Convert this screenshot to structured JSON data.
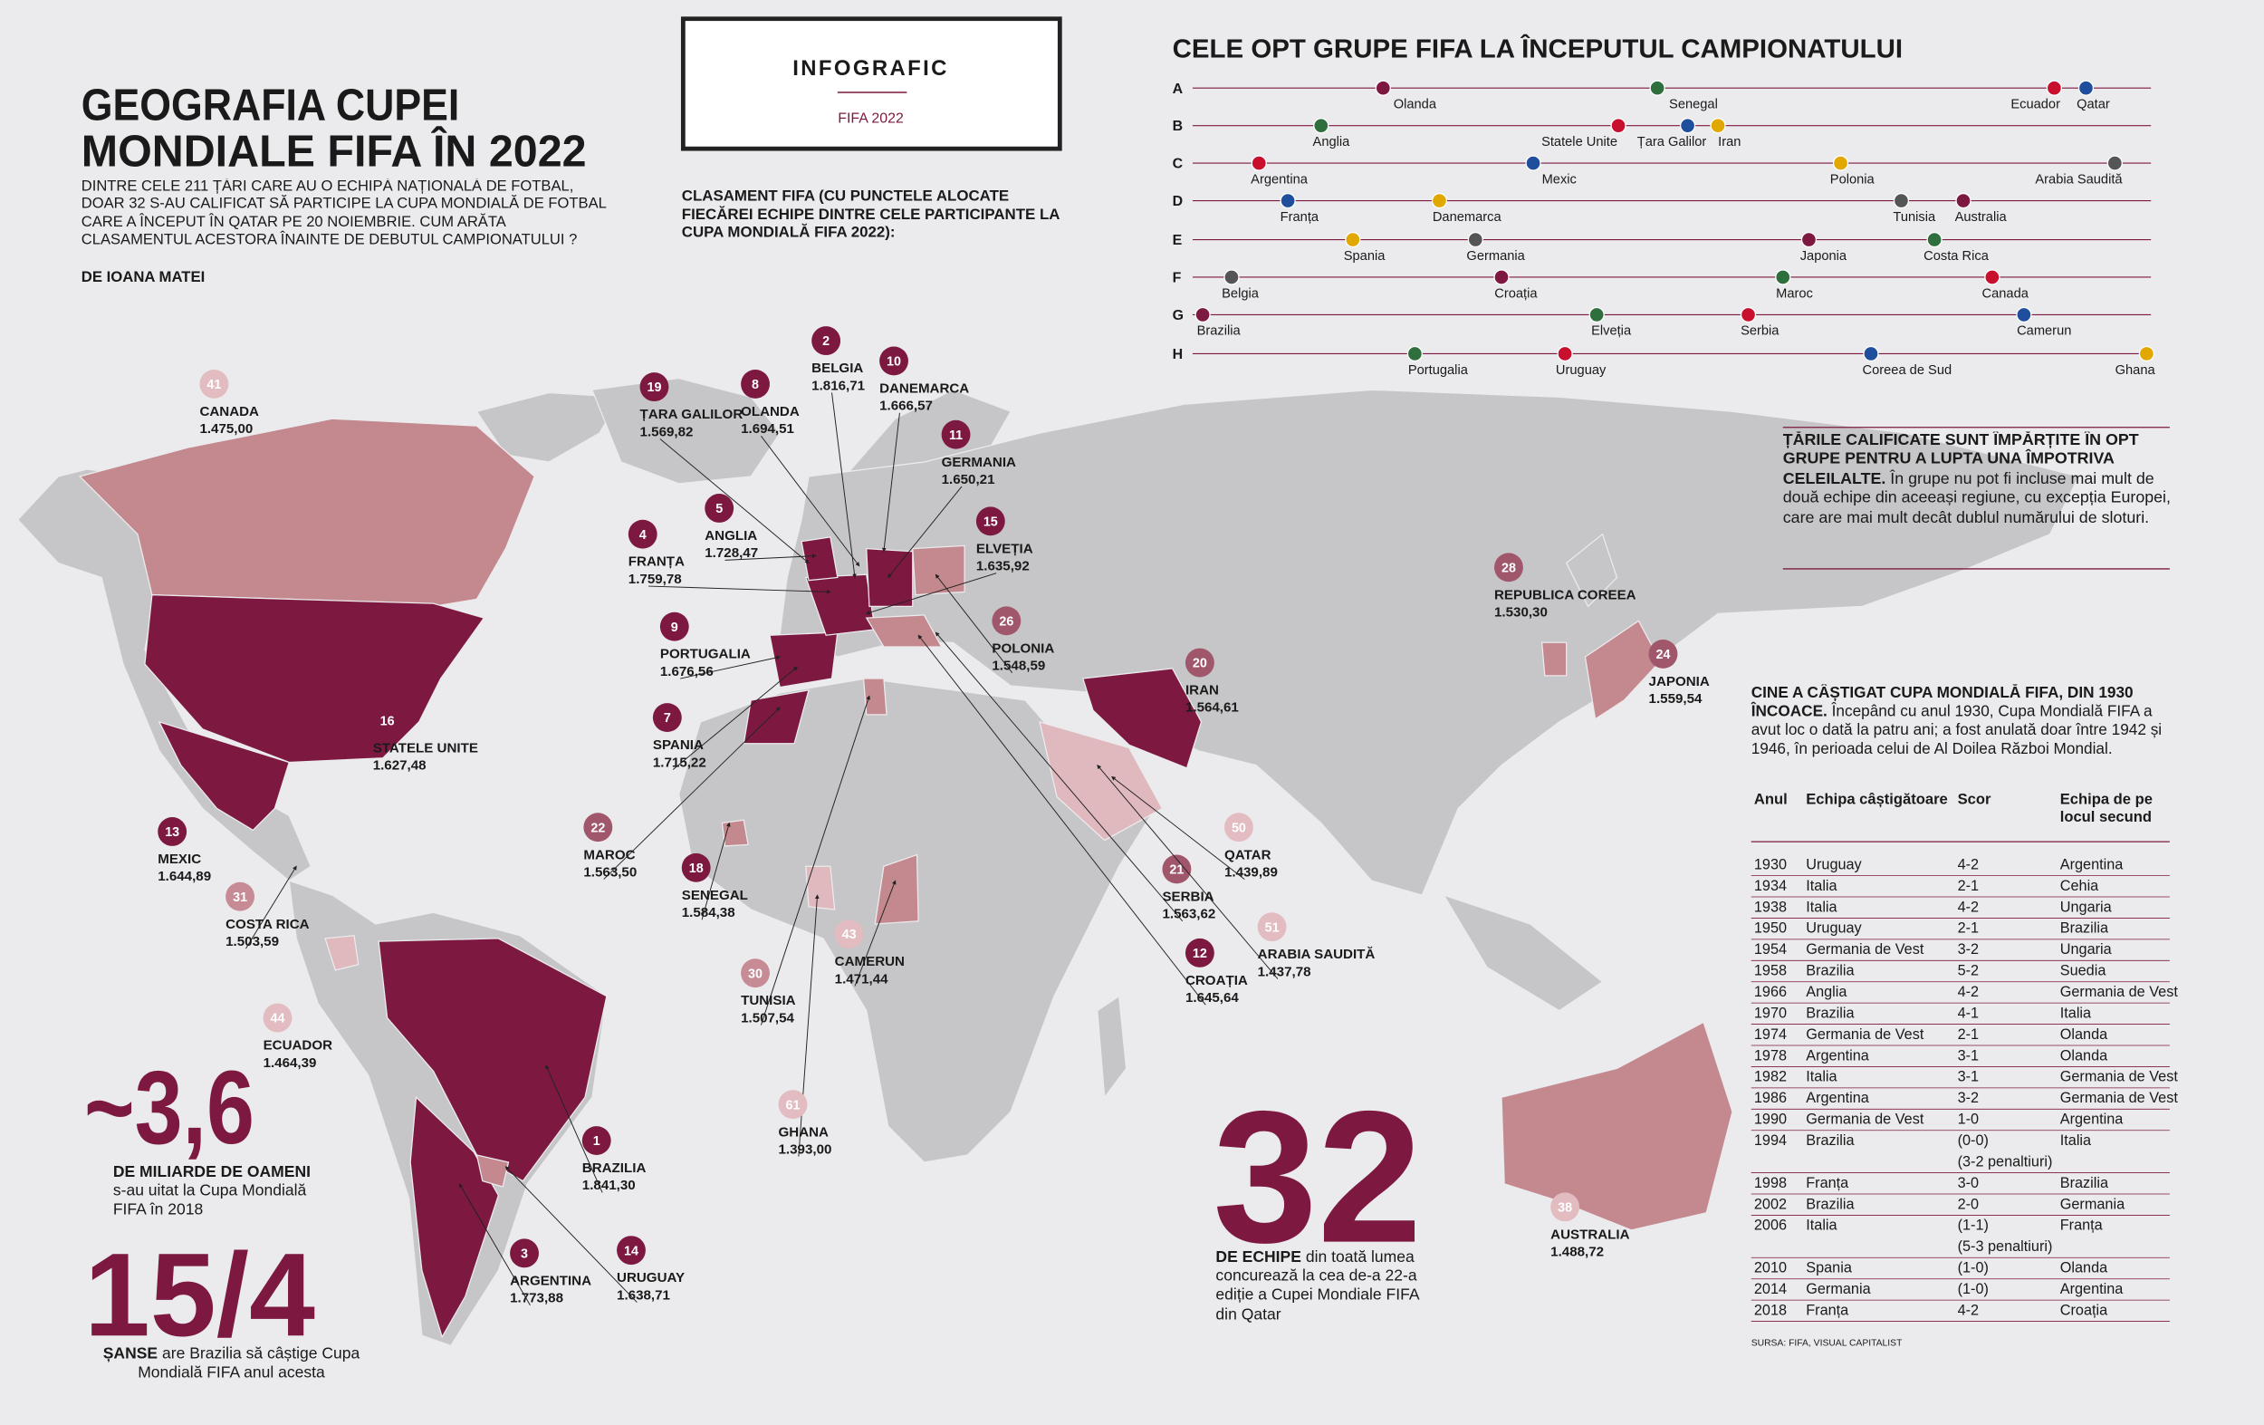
{
  "header": {
    "title": [
      "GEOGRAFIA CUPEI",
      "MONDIALE FIFA ÎN 2022"
    ],
    "intro": "DINTRE CELE 211 ȚĂRI CARE AU O ECHIPĂ NAȚIONALĂ DE FOTBAL, DOAR 32 S-AU CALIFICAT SĂ PARTICIPE LA CUPA MONDIALĂ DE FOTBAL CARE A ÎNCEPUT ÎN QATAR PE 20 NOIEMBRIE. CUM ARĂTA CLASAMENTUL ACESTORA ÎNAINTE DE DEBUTUL CAMPIONATULUI ?",
    "author": "DE IOANA MATEI"
  },
  "badge": {
    "label": "INFOGRAFIC",
    "sub": "FIFA 2022"
  },
  "ranking": {
    "title": "CLASAMENT FIFA (CU PUNCTELE ALOCATE FIECĂREI ECHIPE DINTRE CELE PARTICIPANTE LA CUPA MONDIALĂ FIFA 2022):",
    "countries": [
      {
        "rank": 41,
        "name": "CANADA",
        "points": "1.475,00"
      },
      {
        "rank": 19,
        "name": "ȚARA GALILOR",
        "points": "1.569,82"
      },
      {
        "rank": 8,
        "name": "OLANDA",
        "points": "1.694,51"
      },
      {
        "rank": 2,
        "name": "BELGIA",
        "points": "1.816,71"
      },
      {
        "rank": 10,
        "name": "DANEMARCA",
        "points": "1.666,57"
      },
      {
        "rank": 5,
        "name": "ANGLIA",
        "points": "1.728,47"
      },
      {
        "rank": 4,
        "name": "FRANȚA",
        "points": "1.759,78"
      },
      {
        "rank": 11,
        "name": "GERMANIA",
        "points": "1.650,21"
      },
      {
        "rank": 15,
        "name": "ELVEȚIA",
        "points": "1.635,92"
      },
      {
        "rank": 9,
        "name": "PORTUGALIA",
        "points": "1.676,56"
      },
      {
        "rank": 26,
        "name": "POLONIA",
        "points": "1.548,59"
      },
      {
        "rank": 7,
        "name": "SPANIA",
        "points": "1.715,22"
      },
      {
        "rank": 28,
        "name": "REPUBLICA COREEA",
        "points": "1.530,30"
      },
      {
        "rank": 24,
        "name": "JAPONIA",
        "points": "1.559,54"
      },
      {
        "rank": 20,
        "name": "IRAN",
        "points": "1.564,61"
      },
      {
        "rank": 16,
        "name": "STATELE UNITE",
        "points": "1.627,48"
      },
      {
        "rank": 22,
        "name": "MAROC",
        "points": "1.563,50"
      },
      {
        "rank": 18,
        "name": "SENEGAL",
        "points": "1.584,38"
      },
      {
        "rank": 13,
        "name": "MEXIC",
        "points": "1.644,89"
      },
      {
        "rank": 31,
        "name": "COSTA RICA",
        "points": "1.503,59"
      },
      {
        "rank": 50,
        "name": "QATAR",
        "points": "1.439,89"
      },
      {
        "rank": 21,
        "name": "SERBIA",
        "points": "1.563,62"
      },
      {
        "rank": 43,
        "name": "CAMERUN",
        "points": "1.471,44"
      },
      {
        "rank": 51,
        "name": "ARABIA SAUDITĂ",
        "points": "1.437,78"
      },
      {
        "rank": 12,
        "name": "CROAȚIA",
        "points": "1.645,64"
      },
      {
        "rank": 30,
        "name": "TUNISIA",
        "points": "1.507,54"
      },
      {
        "rank": 44,
        "name": "ECUADOR",
        "points": "1.464,39"
      },
      {
        "rank": 61,
        "name": "GHANA",
        "points": "1.393,00"
      },
      {
        "rank": 1,
        "name": "BRAZILIA",
        "points": "1.841,30"
      },
      {
        "rank": 38,
        "name": "AUSTRALIA",
        "points": "1.488,72"
      },
      {
        "rank": 3,
        "name": "ARGENTINA",
        "points": "1.773,88"
      },
      {
        "rank": 14,
        "name": "URUGUAY",
        "points": "1.638,71"
      }
    ]
  },
  "groups": {
    "title": "CELE OPT GRUPE FIFA LA ÎNCEPUTUL CAMPIONATULUI",
    "rows": [
      {
        "letter": "A",
        "teams": [
          "Olanda",
          "Senegal",
          "Ecuador",
          "Qatar"
        ]
      },
      {
        "letter": "B",
        "teams": [
          "Anglia",
          "Statele Unite",
          "Țara Galilor",
          "Iran"
        ]
      },
      {
        "letter": "C",
        "teams": [
          "Argentina",
          "Mexic",
          "Polonia",
          "Arabia Saudită"
        ]
      },
      {
        "letter": "D",
        "teams": [
          "Franța",
          "Danemarca",
          "Tunisia",
          "Australia"
        ]
      },
      {
        "letter": "E",
        "teams": [
          "Spania",
          "Germania",
          "Japonia",
          "Costa Rica"
        ]
      },
      {
        "letter": "F",
        "teams": [
          "Belgia",
          "Croația",
          "Maroc",
          "Canada"
        ]
      },
      {
        "letter": "G",
        "teams": [
          "Brazilia",
          "Elveția",
          "Serbia",
          "Camerun"
        ]
      },
      {
        "letter": "H",
        "teams": [
          "Portugalia",
          "Uruguay",
          "Coreea de Sud",
          "Ghana"
        ]
      }
    ]
  },
  "note": {
    "bold": "ȚĂRILE CALIFICATE SUNT ÎMPĂRȚITE ÎN OPT GRUPE PENTRU A LUPTA UNA ÎMPOTRIVA CELEILALTE.",
    "text": "În grupe nu pot fi incluse mai mult de două echipe din aceeași regiune, cu excepția Europei, care are mai mult decât dublul numărului de sloturi."
  },
  "stats": [
    {
      "figure": "~3,6",
      "bold": "DE MILIARDE DE OAMENI",
      "text": "s-au uitat la Cupa Mondială FIFA în 2018"
    },
    {
      "figure": "15/4",
      "bold": "ȘANSE",
      "text": "are Brazilia să câștige Cupa Mondială FIFA anul acesta"
    },
    {
      "figure": "32",
      "bold": "DE ECHIPE",
      "text": "din toată lumea concurează la cea de-a 22-a ediție a Cupei Mondiale FIFA din Qatar"
    }
  ],
  "winners": {
    "title": "CINE A CÂȘTIGAT CUPA MONDIALĂ FIFA, DIN 1930 ÎNCOACE.",
    "text": "Începând cu anul 1930, Cupa Mondială FIFA a avut loc o dată la patru ani; a fost anulată doar între 1942 și 1946, în perioada celui de Al Doilea Război Mondial.",
    "headers": [
      "Anul",
      "Echipa câștigătoare",
      "Scor",
      "Echipa de pe locul secund"
    ],
    "rows": [
      {
        "year": 1930,
        "winner": "Uruguay",
        "score": "4-2",
        "runner_up": "Argentina"
      },
      {
        "year": 1934,
        "winner": "Italia",
        "score": "2-1",
        "runner_up": "Cehia"
      },
      {
        "year": 1938,
        "winner": "Italia",
        "score": "4-2",
        "runner_up": "Ungaria"
      },
      {
        "year": 1950,
        "winner": "Uruguay",
        "score": "2-1",
        "runner_up": "Brazilia"
      },
      {
        "year": 1954,
        "winner": "Germania de Vest",
        "score": "3-2",
        "runner_up": "Ungaria"
      },
      {
        "year": 1958,
        "winner": "Brazilia",
        "score": "5-2",
        "runner_up": "Suedia"
      },
      {
        "year": 1966,
        "winner": "Anglia",
        "score": "4-2",
        "runner_up": "Germania de Vest"
      },
      {
        "year": 1970,
        "winner": "Brazilia",
        "score": "4-1",
        "runner_up": "Italia"
      },
      {
        "year": 1974,
        "winner": "Germania de Vest",
        "score": "2-1",
        "runner_up": "Olanda"
      },
      {
        "year": 1978,
        "winner": "Argentina",
        "score": "3-1",
        "runner_up": "Olanda"
      },
      {
        "year": 1982,
        "winner": "Italia",
        "score": "3-1",
        "runner_up": "Germania de Vest"
      },
      {
        "year": 1986,
        "winner": "Argentina",
        "score": "3-2",
        "runner_up": "Germania de Vest"
      },
      {
        "year": 1990,
        "winner": "Germania de Vest",
        "score": "1-0",
        "runner_up": "Argentina"
      },
      {
        "year": 1994,
        "winner": "Brazilia",
        "score": "(0-0)",
        "note": "(3-2 penaltiuri)",
        "runner_up": "Italia"
      },
      {
        "year": 1998,
        "winner": "Franța",
        "score": "3-0",
        "runner_up": "Brazilia"
      },
      {
        "year": 2002,
        "winner": "Brazilia",
        "score": "2-0",
        "runner_up": "Germania"
      },
      {
        "year": 2006,
        "winner": "Italia",
        "score": "(1-1)",
        "note": "(5-3 penaltiuri)",
        "runner_up": "Franța"
      },
      {
        "year": 2010,
        "winner": "Spania",
        "score": "(1-0)",
        "runner_up": "Olanda"
      },
      {
        "year": 2014,
        "winner": "Germania",
        "score": "(1-0)",
        "runner_up": "Argentina"
      },
      {
        "year": 2018,
        "winner": "Franța",
        "score": "4-2",
        "runner_up": "Croația"
      }
    ],
    "source": "SURSA: FIFA, VISUAL CAPITALIST"
  }
}
